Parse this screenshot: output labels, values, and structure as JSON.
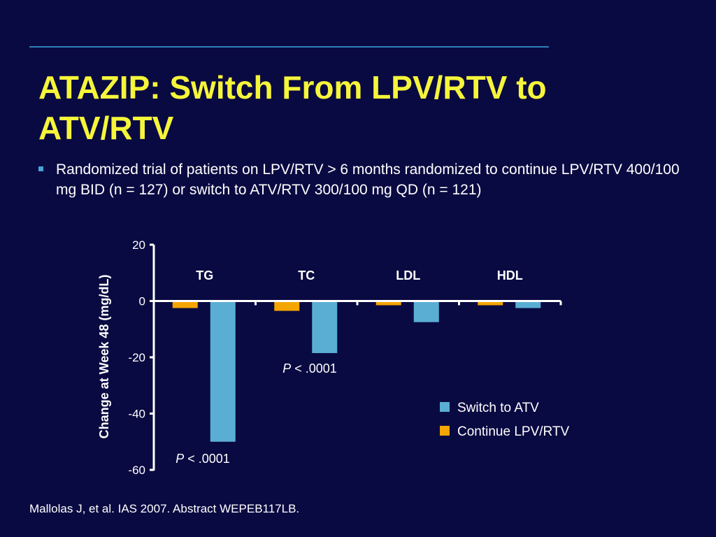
{
  "slide": {
    "title_line1": "ATAZIP: Switch From LPV/RTV to",
    "title_line2": "ATV/RTV",
    "bullet": "Randomized trial of patients on LPV/RTV > 6 months randomized to continue LPV/RTV 400/100 mg BID (n = 127) or switch to ATV/RTV 300/100 mg QD (n = 121)",
    "footer": "Mallolas J, et al. IAS 2007. Abstract WEPEB117LB."
  },
  "colors": {
    "background": "#0a0a42",
    "title": "#f5f53a",
    "switch_bar": "#5aaed3",
    "continue_bar": "#f5a500",
    "accent_rule": "#2f7fb8"
  },
  "chart_data": {
    "type": "bar",
    "categories": [
      "TG",
      "TC",
      "LDL",
      "HDL"
    ],
    "series": [
      {
        "name": "Continue LPV/RTV",
        "values": [
          -2.5,
          -3.5,
          -1.5,
          -1.5
        ]
      },
      {
        "name": "Switch to ATV",
        "values": [
          -50,
          -18.5,
          -7.5,
          -2.5
        ]
      }
    ],
    "ylabel": "Change at Week 48 (mg/dL)",
    "ylim": [
      -60,
      20
    ],
    "yticks": [
      20,
      0,
      -20,
      -40,
      -60
    ],
    "legend": [
      "Switch to ATV",
      "Continue LPV/RTV"
    ],
    "legend_position": "right",
    "grid": false,
    "annotations": [
      {
        "category": "TG",
        "text_italic": "P",
        "text_rest": " < .0001"
      },
      {
        "category": "TC",
        "text_italic": "P",
        "text_rest": " < .0001"
      }
    ]
  }
}
